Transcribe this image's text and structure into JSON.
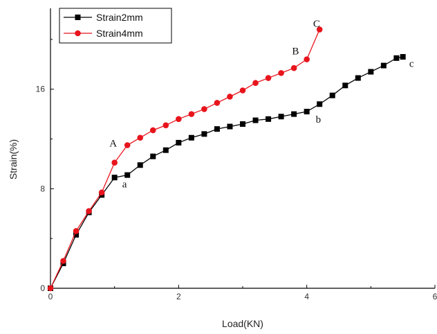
{
  "chart_data": {
    "type": "line",
    "xlabel": "Load(KN)",
    "ylabel": "Strain(%)",
    "xlim": [
      0,
      6
    ],
    "ylim": [
      0,
      22.5
    ],
    "x_ticks": [
      0,
      2,
      4,
      6
    ],
    "x_tick_labels": [
      "0",
      "2",
      "4",
      "6"
    ],
    "y_ticks": [
      0,
      8,
      16
    ],
    "y_tick_labels": [
      "0",
      "8",
      "16"
    ],
    "legend_position": "top-left",
    "series": [
      {
        "name": "Strain2mm",
        "color": "#000000",
        "marker": "square",
        "x": [
          0,
          0.2,
          0.4,
          0.6,
          0.8,
          1.0,
          1.2,
          1.4,
          1.6,
          1.8,
          2.0,
          2.2,
          2.4,
          2.6,
          2.8,
          3.0,
          3.2,
          3.4,
          3.6,
          3.8,
          4.0,
          4.2,
          4.4,
          4.6,
          4.8,
          5.0,
          5.2,
          5.4,
          5.5
        ],
        "y": [
          0,
          2.0,
          4.3,
          6.1,
          7.5,
          8.9,
          9.1,
          9.9,
          10.6,
          11.1,
          11.7,
          12.1,
          12.4,
          12.8,
          13.0,
          13.2,
          13.5,
          13.6,
          13.8,
          14.0,
          14.2,
          14.8,
          15.5,
          16.3,
          16.9,
          17.4,
          17.9,
          18.5,
          18.6
        ]
      },
      {
        "name": "Strain4mm",
        "color": "#e8141c",
        "marker": "circle",
        "x": [
          0,
          0.2,
          0.4,
          0.6,
          0.8,
          1.0,
          1.2,
          1.4,
          1.6,
          1.8,
          2.0,
          2.2,
          2.4,
          2.6,
          2.8,
          3.0,
          3.2,
          3.4,
          3.6,
          3.8,
          4.0,
          4.2
        ],
        "y": [
          0,
          2.2,
          4.6,
          6.2,
          7.7,
          10.1,
          11.5,
          12.1,
          12.7,
          13.1,
          13.6,
          14.0,
          14.4,
          14.9,
          15.4,
          15.9,
          16.5,
          16.9,
          17.3,
          17.7,
          18.4,
          20.8
        ]
      }
    ],
    "annotations": [
      {
        "text": "A",
        "x": 0.92,
        "y": 11.4
      },
      {
        "text": "a",
        "x": 1.12,
        "y": 8.1
      },
      {
        "text": "B",
        "x": 3.77,
        "y": 18.8
      },
      {
        "text": "b",
        "x": 4.14,
        "y": 13.3
      },
      {
        "text": "C",
        "x": 4.1,
        "y": 21.0
      },
      {
        "text": "c",
        "x": 5.6,
        "y": 17.8
      }
    ]
  }
}
